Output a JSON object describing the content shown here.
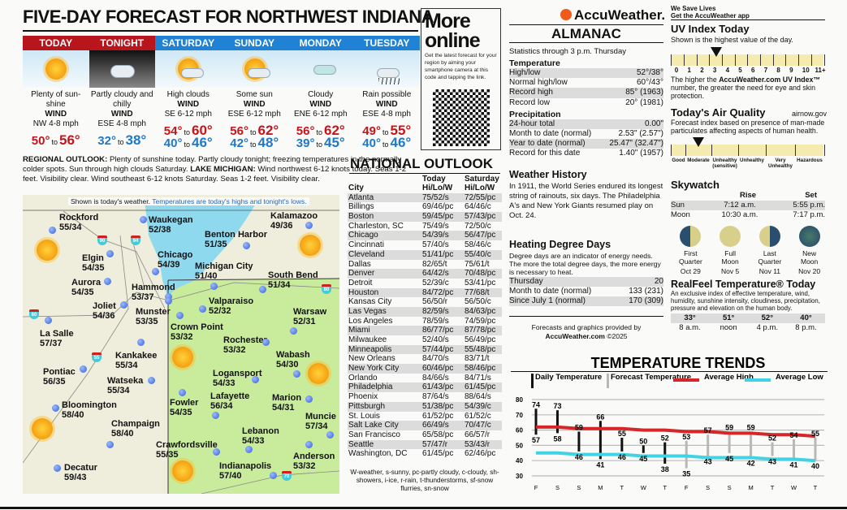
{
  "title": "FIVE-DAY FORECAST FOR NORTHWEST INDIANA",
  "forecast": [
    {
      "day": "TODAY",
      "cond": "Plenty of sun-shine",
      "wind_label": "WIND",
      "wind": "NW 4-8 mph",
      "t1": "50°",
      "to": "to",
      "t2": "56°",
      "color": "red",
      "icon": "sunny-icon"
    },
    {
      "day": "TONIGHT",
      "cond": "Partly cloudy and chilly",
      "wind_label": "WIND",
      "wind": "ESE 4-8 mph",
      "t1": "32°",
      "to": "to",
      "t2": "38°",
      "color": "blue",
      "icon": "partly-cloudy-night-icon"
    },
    {
      "day": "SATURDAY",
      "cond": "High clouds",
      "wind_label": "WIND",
      "wind": "SE 6-12 mph",
      "t1": "54°",
      "to": "to",
      "t2": "60°",
      "t3": "40°",
      "t4": "46°",
      "icon": "high-clouds-icon"
    },
    {
      "day": "SUNDAY",
      "cond": "Some sun",
      "wind_label": "WIND",
      "wind": "ESE 6-12 mph",
      "t1": "56°",
      "to": "to",
      "t2": "62°",
      "t3": "42°",
      "t4": "48°",
      "icon": "some-sun-icon"
    },
    {
      "day": "MONDAY",
      "cond": "Cloudy",
      "wind_label": "WIND",
      "wind": "ENE 6-12 mph",
      "t1": "56°",
      "to": "to",
      "t2": "62°",
      "t3": "39°",
      "t4": "45°",
      "icon": "cloudy-icon"
    },
    {
      "day": "TUESDAY",
      "cond": "Rain possible",
      "wind_label": "WIND",
      "wind": "ESE 4-8 mph",
      "t1": "49°",
      "to": "to",
      "t2": "55°",
      "t3": "40°",
      "t4": "46°",
      "icon": "rain-icon"
    }
  ],
  "outlook": {
    "label1": "REGIONAL OUTLOOK:",
    "text1": " Plenty of sunshine today. Partly cloudy tonight; freezing temperatures in the normally colder spots. Sun through high clouds Saturday. ",
    "label2": "LAKE MICHIGAN:",
    "text2": " Wind northwest 6-12 knots today. Seas 1-2 feet. Visibility clear. Wind southeast 6-12 knots Saturday. Seas 1-2 feet. Visibility clear."
  },
  "map": {
    "note1": "Shown is today's weather.",
    "note2": " Temperatures are today's highs and tonight's lows.",
    "cities": [
      {
        "name": "Rockford",
        "temp": "55/34"
      },
      {
        "name": "Waukegan",
        "temp": "52/38"
      },
      {
        "name": "Kalamazoo",
        "temp": "49/36"
      },
      {
        "name": "Elgin",
        "temp": "54/35"
      },
      {
        "name": "Benton Harbor",
        "temp": "51/35"
      },
      {
        "name": "Chicago",
        "temp": "54/39"
      },
      {
        "name": "Aurora",
        "temp": "54/35"
      },
      {
        "name": "Michigan City",
        "temp": "51/40"
      },
      {
        "name": "South Bend",
        "temp": "51/34"
      },
      {
        "name": "Hammond",
        "temp": "53/37"
      },
      {
        "name": "Joliet",
        "temp": "54/36"
      },
      {
        "name": "Munster",
        "temp": "53/35"
      },
      {
        "name": "Valparaiso",
        "temp": "52/32"
      },
      {
        "name": "Warsaw",
        "temp": "52/31"
      },
      {
        "name": "La Salle",
        "temp": "57/37"
      },
      {
        "name": "Crown Point",
        "temp": "53/32"
      },
      {
        "name": "Rochester",
        "temp": "53/32"
      },
      {
        "name": "Kankakee",
        "temp": "55/34"
      },
      {
        "name": "Wabash",
        "temp": "54/30"
      },
      {
        "name": "Pontiac",
        "temp": "56/35"
      },
      {
        "name": "Logansport",
        "temp": "54/33"
      },
      {
        "name": "Watseka",
        "temp": "55/34"
      },
      {
        "name": "Lafayette",
        "temp": "56/34"
      },
      {
        "name": "Marion",
        "temp": "54/31"
      },
      {
        "name": "Bloomington",
        "temp": "58/40"
      },
      {
        "name": "Fowler",
        "temp": "54/35"
      },
      {
        "name": "Muncie",
        "temp": "57/34"
      },
      {
        "name": "Champaign",
        "temp": "58/40"
      },
      {
        "name": "Lebanon",
        "temp": "54/33"
      },
      {
        "name": "Crawfordsville",
        "temp": "55/35"
      },
      {
        "name": "Anderson",
        "temp": "53/32"
      },
      {
        "name": "Indianapolis",
        "temp": "57/40"
      },
      {
        "name": "Decatur",
        "temp": "59/43"
      }
    ],
    "interstates": [
      "90",
      "94",
      "80",
      "55",
      "80",
      "70"
    ]
  },
  "more_online": {
    "title1": "More",
    "title2": "online",
    "text": "Get the latest forecast for your region by aiming your smartphone camera at this code and tapping the link."
  },
  "national": {
    "title": "NATIONAL OUTLOOK",
    "headers": [
      "City",
      "Today Hi/Lo/W",
      "Saturday Hi/Lo/W"
    ],
    "col_top": [
      "",
      "Today",
      "Saturday"
    ],
    "col_bot": [
      "City",
      "Hi/Lo/W",
      "Hi/Lo/W"
    ],
    "rows": [
      [
        "Atlanta",
        "75/52/s",
        "72/55/pc"
      ],
      [
        "Billings",
        "69/46/pc",
        "64/46/c"
      ],
      [
        "Boston",
        "59/45/pc",
        "57/43/pc"
      ],
      [
        "Charleston, SC",
        "75/49/s",
        "72/50/c"
      ],
      [
        "Chicago",
        "54/39/s",
        "56/47/pc"
      ],
      [
        "Cincinnati",
        "57/40/s",
        "58/46/c"
      ],
      [
        "Cleveland",
        "51/41/pc",
        "55/40/c"
      ],
      [
        "Dallas",
        "82/65/t",
        "75/61/t"
      ],
      [
        "Denver",
        "64/42/s",
        "70/48/pc"
      ],
      [
        "Detroit",
        "52/39/c",
        "53/41/pc"
      ],
      [
        "Houston",
        "84/72/pc",
        "77/68/t"
      ],
      [
        "Kansas City",
        "56/50/r",
        "56/50/c"
      ],
      [
        "Las Vegas",
        "82/59/s",
        "84/63/pc"
      ],
      [
        "Los Angeles",
        "78/59/s",
        "74/59/pc"
      ],
      [
        "Miami",
        "86/77/pc",
        "87/78/pc"
      ],
      [
        "Milwaukee",
        "52/40/s",
        "56/49/pc"
      ],
      [
        "Minneapolis",
        "57/44/pc",
        "55/48/pc"
      ],
      [
        "New Orleans",
        "84/70/s",
        "83/71/t"
      ],
      [
        "New York City",
        "60/46/pc",
        "58/46/pc"
      ],
      [
        "Orlando",
        "84/66/s",
        "84/71/s"
      ],
      [
        "Philadelphia",
        "61/43/pc",
        "61/45/pc"
      ],
      [
        "Phoenix",
        "87/64/s",
        "88/64/s"
      ],
      [
        "Pittsburgh",
        "51/38/pc",
        "54/39/c"
      ],
      [
        "St. Louis",
        "61/52/pc",
        "61/52/c"
      ],
      [
        "Salt Lake City",
        "66/49/s",
        "70/47/c"
      ],
      [
        "San Francisco",
        "65/58/pc",
        "66/57/r"
      ],
      [
        "Seattle",
        "57/47/r",
        "53/43/r"
      ],
      [
        "Washington, DC",
        "61/45/pc",
        "62/46/pc"
      ]
    ],
    "legend": "W-weather, s-sunny, pc-partly cloudy, c-cloudy, sh-showers, i-ice, r-rain, t-thunderstorms, sf-snow flurries, sn-snow"
  },
  "brand": {
    "logo": "AccuWeather.",
    "tag1": "We Save Lives",
    "tag2": "Get the AccuWeather app"
  },
  "almanac": {
    "title": "ALMANAC",
    "stats": "Statistics through 3 p.m. Thursday",
    "temp_title": "Temperature",
    "temp_rows": [
      [
        "High/low",
        "52°/38°"
      ],
      [
        "Normal high/low",
        "60°/43°"
      ],
      [
        "Record high",
        "85° (1963)"
      ],
      [
        "Record low",
        "20° (1981)"
      ]
    ],
    "precip_title": "Precipitation",
    "precip_rows": [
      [
        "24-hour total",
        "0.00\""
      ],
      [
        "Month to date (normal)",
        "2.53\" (2.57\")"
      ],
      [
        "Year to date (normal)",
        "25.47\" (32.47\")"
      ],
      [
        "Record for this date",
        "1.40\" (1957)"
      ]
    ],
    "history_title": "Weather History",
    "history": "In 1911, the World Series endured its longest string of rainouts, six days. The Philadelphia A's and New York Giants resumed play on Oct. 24.",
    "hdd_title": "Heating Degree Days",
    "hdd_text": "Degree days are an indicator of energy needs. The more the total degree days, the more energy is necessary to heat.",
    "hdd_rows": [
      [
        "Thursday",
        "20"
      ],
      [
        "Month to date (normal)",
        "133 (231)"
      ],
      [
        "Since July 1 (normal)",
        "170 (309)"
      ]
    ],
    "credit1": "Forecasts and graphics provided by",
    "credit2": "AccuWeather.com",
    "credit3": " ©2025"
  },
  "uv": {
    "title": "UV Index Today",
    "sub": "Shown is the highest value of the day.",
    "value": 3,
    "ticks": [
      "0",
      "1",
      "2",
      "3",
      "4",
      "5",
      "6",
      "7",
      "8",
      "9",
      "10",
      "11+"
    ],
    "note1": "The higher the ",
    "note_b": "AccuWeather.com UV Index™",
    "note2": " number, the greater the need for eye and skin protection."
  },
  "air": {
    "title": "Today's Air Quality",
    "site": "airnow.gov",
    "sub": "Forecast index based on presence of man-made particulates affecting aspects of human health.",
    "value": "Moderate",
    "cats": [
      "Good",
      "Moderate",
      "Unhealthy (sensitive)",
      "Unhealthy",
      "Very Unhealthy",
      "Hazardous"
    ]
  },
  "skywatch": {
    "title": "Skywatch",
    "rise": "Rise",
    "set": "Set",
    "rows": [
      [
        "Sun",
        "7:12 a.m.",
        "5:55 p.m."
      ],
      [
        "Moon",
        "10:30 a.m.",
        "7:17 p.m."
      ]
    ],
    "phases": [
      {
        "l1": "First",
        "l2": "Quarter",
        "date": "Oct 29"
      },
      {
        "l1": "Full",
        "l2": "Moon",
        "date": "Nov 5"
      },
      {
        "l1": "Last",
        "l2": "Quarter",
        "date": "Nov 11"
      },
      {
        "l1": "New",
        "l2": "Moon",
        "date": "Nov 20"
      }
    ]
  },
  "realfeel": {
    "title": "RealFeel Temperature® Today",
    "sub": "An exclusive index of effective temperature, wind, humidity, sunshine intensity, cloudiness, precipitation, pressure and elevation on the human body.",
    "temps": [
      "33°",
      "51°",
      "52°",
      "40°"
    ],
    "times": [
      "8 a.m.",
      "noon",
      "4 p.m.",
      "8 p.m."
    ]
  },
  "chart_data": {
    "type": "bar",
    "title": "TEMPERATURE TRENDS",
    "legend": [
      "Daily Temperature",
      "Forecast Temperature",
      "Average High",
      "Average Low"
    ],
    "colors": {
      "daily": "#111111",
      "forecast": "#b8b8b8",
      "avg_high": "#d6262a",
      "avg_low": "#3fd3e3"
    },
    "categories": [
      "F",
      "S",
      "S",
      "M",
      "T",
      "W",
      "T",
      "F",
      "S",
      "S",
      "M",
      "T",
      "W",
      "T"
    ],
    "yticks": [
      "80",
      "70",
      "60",
      "50",
      "40",
      "30"
    ],
    "ylim": [
      30,
      80
    ],
    "grid": true,
    "high": [
      74,
      73,
      59,
      66,
      55,
      50,
      52,
      53,
      57,
      59,
      59,
      52,
      54,
      55
    ],
    "low": [
      57,
      58,
      46,
      41,
      46,
      45,
      38,
      35,
      43,
      45,
      42,
      43,
      41,
      40
    ],
    "forecast_from_index": 7,
    "avg_high": [
      62,
      62,
      61,
      61,
      61,
      60,
      60,
      59,
      59,
      58,
      58,
      57,
      57,
      56
    ],
    "avg_low": [
      45,
      45,
      44,
      44,
      44,
      43,
      43,
      43,
      42,
      42,
      42,
      41,
      41,
      40
    ]
  }
}
